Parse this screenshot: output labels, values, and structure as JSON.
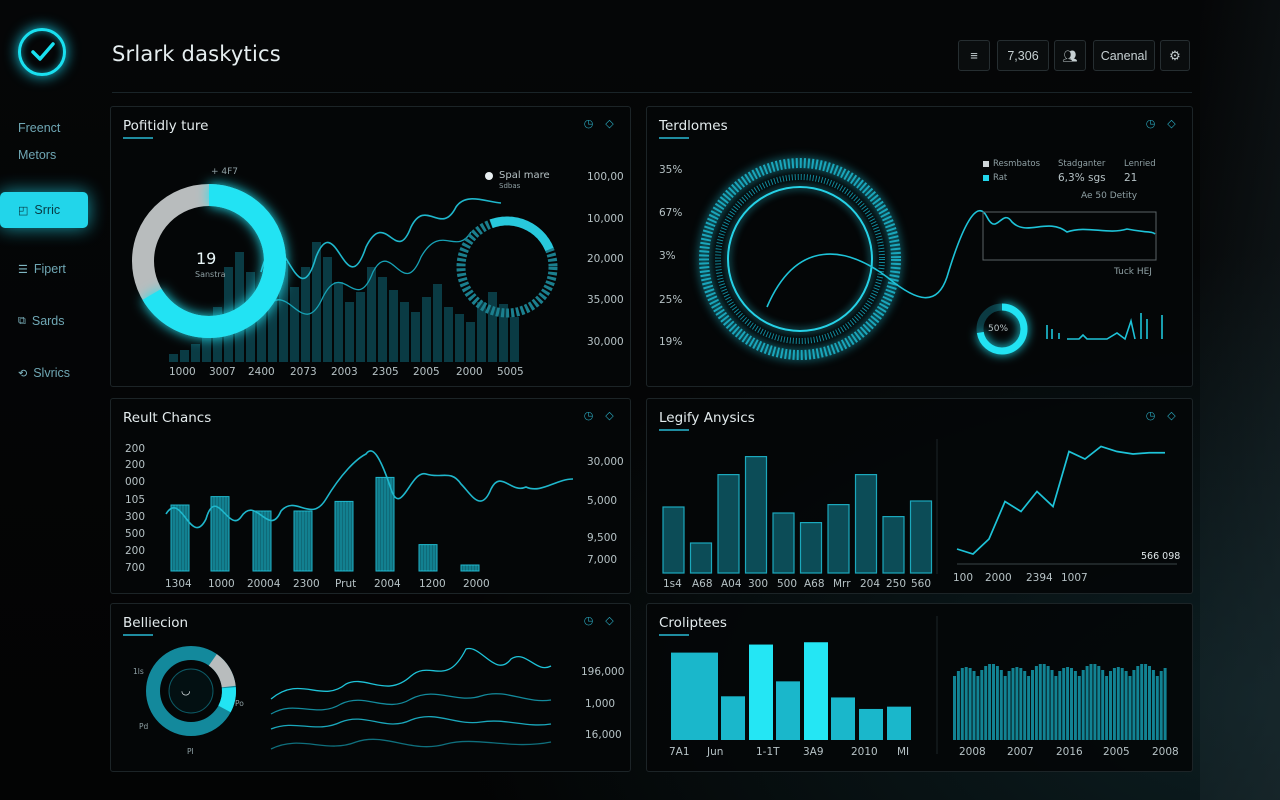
{
  "app": {
    "title": "Srlark daskytics"
  },
  "header": {
    "menu_icon": "menu-icon",
    "count": "7,306",
    "users_icon": "users-icon",
    "cancel_label": "Canenal",
    "settings_icon": "gear-icon"
  },
  "sidebar": {
    "logo_icon": "check-circle-icon",
    "items": [
      {
        "label": "Freenct",
        "icon": ""
      },
      {
        "label": "Metors",
        "icon": ""
      },
      {
        "label": "Srric",
        "icon": "square-icon",
        "active": true
      },
      {
        "label": "Fipert",
        "icon": "list-icon"
      },
      {
        "label": "Sards",
        "icon": "cards-icon"
      },
      {
        "label": "Slvrics",
        "icon": "share-icon"
      }
    ]
  },
  "colors": {
    "accent": "#22d5ea",
    "accent_dim": "#137d8c",
    "bg": "#040506",
    "panel_border": "#1c2427",
    "grey": "#b8bcbd"
  },
  "panels": {
    "p1": {
      "title": "Pofitidly ture",
      "donut_value": "19",
      "donut_sub": "Sanstra",
      "top_note": "+ 4F7",
      "legend": "Spal mare",
      "legend_sub": "Sdbas",
      "y_right": [
        "100,00",
        "10,000",
        "20,000",
        "35,000",
        "30,000"
      ],
      "x_labels": [
        "1000",
        "3007",
        "2400",
        "2073",
        "2003",
        "2305",
        "2005",
        "2000",
        "5005"
      ]
    },
    "p2": {
      "title": "Terdlomes",
      "y_left": [
        "35%",
        "67%",
        "3%",
        "25%",
        "19%"
      ],
      "legend_cols": [
        {
          "items": [
            "Resmbatos",
            "Rat"
          ]
        },
        {
          "head": "Stadganter",
          "value": "6,3% sgs"
        },
        {
          "head": "Lenried",
          "value": "21"
        }
      ],
      "subnote": "Ae 50 Detity",
      "corner_note": "Tuck HEJ",
      "ring_value": "50%"
    },
    "p3": {
      "title": "Reult Chancs",
      "y_left": [
        "200",
        "200",
        "000",
        "105",
        "300",
        "500",
        "200",
        "700"
      ],
      "y_right": [
        "30,000",
        "5,000",
        "9,500",
        "7,000"
      ],
      "x_labels": [
        "1304",
        "1000",
        "20004",
        "2300",
        "Prut",
        "2004",
        "1200",
        "2000"
      ]
    },
    "p4": {
      "title": "Legify Anysics",
      "x_labels": [
        "1s4",
        "A68",
        "A04",
        "300",
        "500",
        "A68",
        "Mrr",
        "204",
        "250",
        "560"
      ],
      "x_labels_right": [
        "100",
        "2000",
        "2394",
        "1007"
      ],
      "value_note": "566 098"
    },
    "p5": {
      "title": "Belliecion",
      "y_right": [
        "196,000",
        "1,000",
        "16,000"
      ],
      "donut_labels": [
        "1ls",
        "Pd",
        "Po",
        "PI"
      ]
    },
    "p6": {
      "title": "Croliptees",
      "x_labels": [
        "7A1",
        "Jun",
        "1-1T",
        "3A9",
        "2010",
        "MI"
      ],
      "x_labels_right": [
        "2008",
        "2007",
        "2016",
        "2005",
        "2008"
      ]
    }
  },
  "chart_data": [
    {
      "type": "bar",
      "panel": "Reult Chancs",
      "categories": [
        "1304",
        "1000",
        "20004",
        "2300",
        "Prut",
        "2004",
        "1200",
        "2000"
      ],
      "values": [
        0.55,
        0.62,
        0.5,
        0.5,
        0.58,
        0.78,
        0.22,
        0.05
      ],
      "ylim": [
        0,
        1
      ]
    },
    {
      "type": "bar",
      "panel": "Legify Anysics",
      "values": [
        0.55,
        0.25,
        0.82,
        0.97,
        0.5,
        0.42,
        0.57,
        0.82,
        0.47,
        0.6
      ],
      "ylim": [
        0,
        1
      ]
    },
    {
      "type": "line",
      "panel": "Legify Anysics",
      "values": [
        0.12,
        0.08,
        0.2,
        0.5,
        0.42,
        0.58,
        0.46,
        0.9,
        0.84,
        0.94,
        0.9,
        0.88,
        0.89,
        0.89
      ],
      "ylim": [
        0,
        1
      ]
    },
    {
      "type": "bar",
      "panel": "Croliptees",
      "values": [
        0.76,
        0.38,
        0.83,
        0.51,
        0.85,
        0.37,
        0.27,
        0.29
      ],
      "ylim": [
        0,
        1
      ]
    }
  ]
}
